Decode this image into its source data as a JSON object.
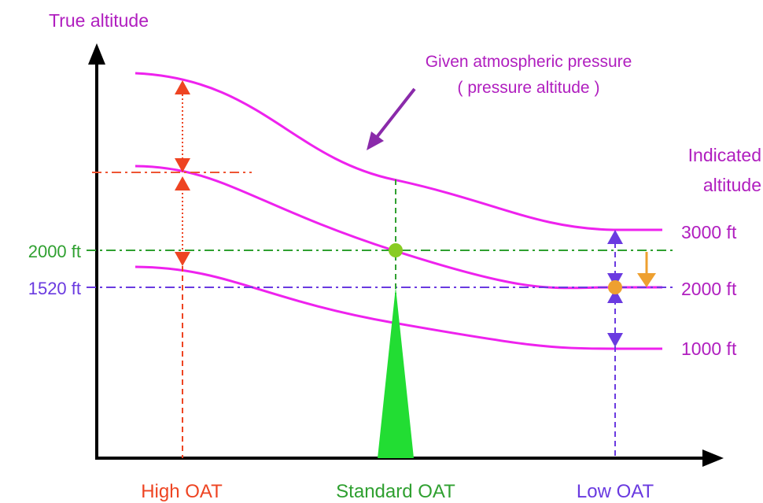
{
  "labels": {
    "y_axis": "True altitude",
    "annotation_line1": "Given atmospheric pressure",
    "annotation_line2": "( pressure altitude )",
    "indicated_line1": "Indicated",
    "indicated_line2": "altitude",
    "curve_3000": "3000 ft",
    "curve_2000": "2000 ft",
    "curve_1000": "1000 ft",
    "level_2000": "2000 ft",
    "level_1520": "1520 ft",
    "high_oat": "High OAT",
    "standard_oat": "Standard OAT",
    "low_oat": "Low OAT"
  },
  "colors": {
    "axis": "#000000",
    "isobar": "#ee22ee",
    "label_purple": "#b01ebf",
    "high_oat": "#ee4422",
    "standard_oat": "#2fa030",
    "low_oat": "#6a3ae0",
    "green_fill": "#22dd33",
    "green_dot": "#88cc22",
    "orange": "#eea030"
  },
  "icons": [
    "up-arrowhead-icon",
    "down-arrowhead-icon",
    "down-arrow-icon",
    "pointer-arrow-icon"
  ]
}
